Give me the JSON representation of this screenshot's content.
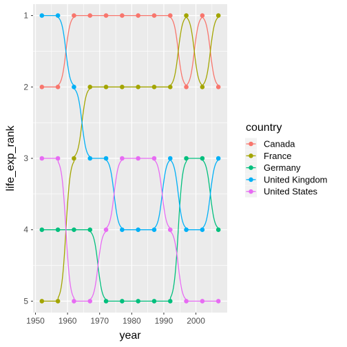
{
  "chart_data": {
    "type": "line",
    "xlabel": "year",
    "ylabel": "life_exp_rank",
    "x": [
      1952,
      1957,
      1962,
      1967,
      1972,
      1977,
      1982,
      1987,
      1992,
      1997,
      2002,
      2007
    ],
    "xlim": [
      1949.25,
      2009.75
    ],
    "ylim": [
      1,
      5
    ],
    "y_reversed": true,
    "xticks": [
      1950,
      1960,
      1970,
      1980,
      1990,
      2000
    ],
    "yticks": [
      1,
      2,
      3,
      4,
      5
    ],
    "grid": true,
    "legend": {
      "title": "country",
      "position": "right"
    },
    "line_style": "smoothed step (sigmoid bump)",
    "series": [
      {
        "name": "Canada",
        "color": "#F8766D",
        "values": [
          2,
          2,
          1,
          1,
          1,
          1,
          1,
          1,
          1,
          2,
          1,
          2
        ]
      },
      {
        "name": "France",
        "color": "#A3A500",
        "values": [
          5,
          5,
          3,
          2,
          2,
          2,
          2,
          2,
          2,
          1,
          2,
          1
        ]
      },
      {
        "name": "Germany",
        "color": "#00BF7D",
        "values": [
          4,
          4,
          4,
          4,
          5,
          5,
          5,
          5,
          5,
          3,
          3,
          4
        ]
      },
      {
        "name": "United Kingdom",
        "color": "#00B0F6",
        "values": [
          1,
          1,
          2,
          3,
          3,
          4,
          4,
          4,
          3,
          4,
          4,
          3
        ]
      },
      {
        "name": "United States",
        "color": "#E76BF3",
        "values": [
          3,
          3,
          5,
          5,
          4,
          3,
          3,
          3,
          4,
          5,
          5,
          5
        ]
      }
    ]
  }
}
